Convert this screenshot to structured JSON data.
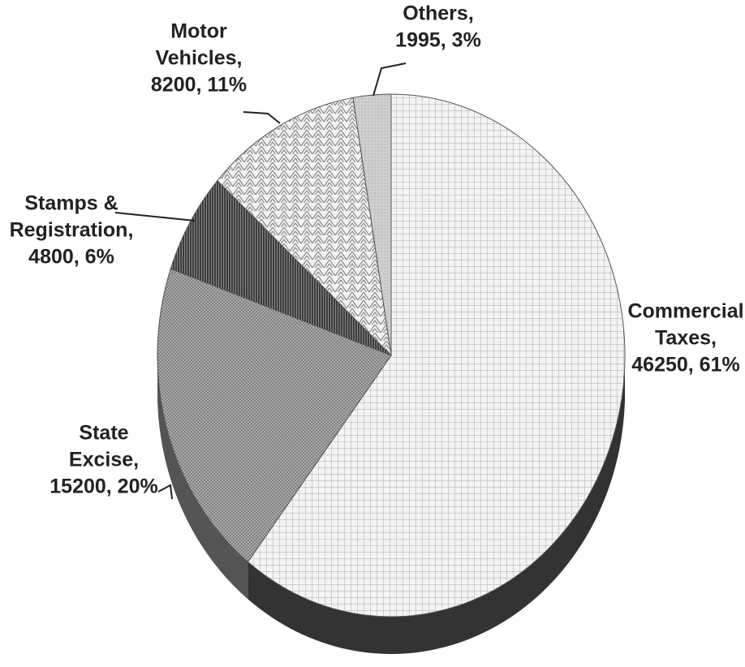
{
  "chart_data": {
    "type": "pie",
    "values": [
      46250,
      15200,
      4800,
      8200,
      1995
    ],
    "labels": [
      [
        "Commercial",
        "Taxes,",
        "46250, 61%"
      ],
      [
        "State",
        "Excise,",
        "15200, 20%"
      ],
      [
        "Stamps &",
        "Registration,",
        "4800, 6%"
      ],
      [
        "Motor",
        "Vehicles,",
        "8200, 11%"
      ],
      [
        "Others,",
        "1995, 3%"
      ]
    ]
  }
}
